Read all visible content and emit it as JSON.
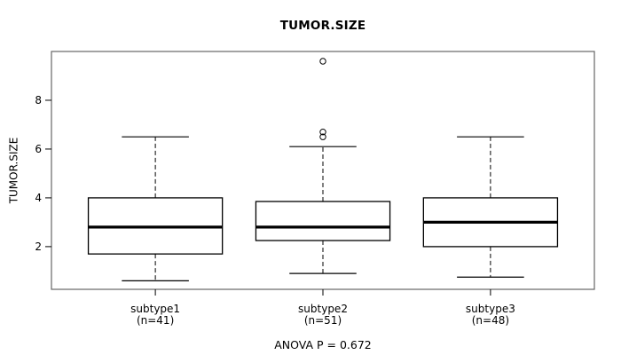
{
  "chart_data": {
    "type": "boxplot",
    "title": "TUMOR.SIZE",
    "ylabel": "TUMOR.SIZE",
    "footer": "ANOVA P = 0.672",
    "yticks": [
      2,
      4,
      6,
      8
    ],
    "ylim": [
      0.25,
      10.0
    ],
    "grid": false,
    "box_fill": "#ffffff",
    "line_color": "#000000",
    "frame_color": "#666666",
    "groups": [
      {
        "label": "subtype1",
        "sublabel": "(n=41)",
        "n": 41,
        "whisker_low": 0.6,
        "q1": 1.7,
        "median": 2.8,
        "q3": 4.0,
        "whisker_high": 6.5,
        "outliers": []
      },
      {
        "label": "subtype2",
        "sublabel": "(n=51)",
        "n": 51,
        "whisker_low": 0.9,
        "q1": 2.25,
        "median": 2.8,
        "q3": 3.85,
        "whisker_high": 6.1,
        "outliers": [
          6.5,
          6.7,
          9.6
        ]
      },
      {
        "label": "subtype3",
        "sublabel": "(n=48)",
        "n": 48,
        "whisker_low": 0.75,
        "q1": 2.0,
        "median": 3.0,
        "q3": 4.0,
        "whisker_high": 6.5,
        "outliers": []
      }
    ]
  }
}
